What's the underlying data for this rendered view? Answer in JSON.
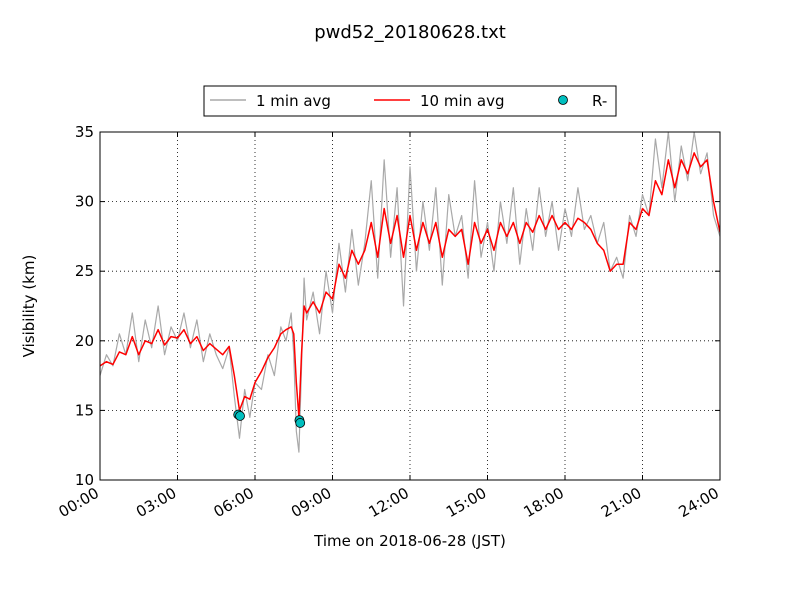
{
  "chart_data": {
    "type": "line",
    "title": "pwd52_20180628.txt",
    "xlabel": "Time on 2018-06-28 (JST)",
    "ylabel": "Visibility (km)",
    "x_unit": "hours",
    "xlim": [
      0,
      24
    ],
    "ylim": [
      10,
      35
    ],
    "x_ticks": [
      0,
      3,
      6,
      9,
      12,
      15,
      18,
      21,
      24
    ],
    "x_tick_labels": [
      "00:00",
      "03:00",
      "06:00",
      "09:00",
      "12:00",
      "15:00",
      "18:00",
      "21:00",
      "24:00"
    ],
    "y_ticks": [
      10,
      15,
      20,
      25,
      30,
      35
    ],
    "y_tick_labels": [
      "10",
      "15",
      "20",
      "25",
      "30",
      "35"
    ],
    "grid": true,
    "legend": {
      "placement": "top-center, above plot"
    },
    "series": [
      {
        "name": "1 min avg",
        "color": "#a9a9a9",
        "kind": "line",
        "x": [
          0.0,
          0.25,
          0.5,
          0.75,
          1.0,
          1.25,
          1.5,
          1.75,
          2.0,
          2.25,
          2.5,
          2.75,
          3.0,
          3.25,
          3.5,
          3.75,
          4.0,
          4.25,
          4.5,
          4.75,
          5.0,
          5.2,
          5.4,
          5.6,
          5.8,
          6.0,
          6.25,
          6.5,
          6.75,
          7.0,
          7.2,
          7.4,
          7.5,
          7.6,
          7.7,
          7.8,
          7.9,
          8.0,
          8.25,
          8.5,
          8.75,
          9.0,
          9.25,
          9.5,
          9.75,
          10.0,
          10.25,
          10.5,
          10.75,
          11.0,
          11.25,
          11.5,
          11.75,
          12.0,
          12.25,
          12.5,
          12.75,
          13.0,
          13.25,
          13.5,
          13.75,
          14.0,
          14.25,
          14.5,
          14.75,
          15.0,
          15.25,
          15.5,
          15.75,
          16.0,
          16.25,
          16.5,
          16.75,
          17.0,
          17.25,
          17.5,
          17.75,
          18.0,
          18.25,
          18.5,
          18.75,
          19.0,
          19.25,
          19.5,
          19.75,
          20.0,
          20.25,
          20.5,
          20.75,
          21.0,
          21.25,
          21.5,
          21.75,
          22.0,
          22.25,
          22.5,
          22.75,
          23.0,
          23.25,
          23.5,
          23.75,
          24.0
        ],
        "values": [
          17.5,
          19.0,
          18.2,
          20.5,
          19.0,
          22.0,
          18.5,
          21.5,
          19.5,
          22.5,
          19.0,
          21.0,
          20.0,
          22.0,
          19.5,
          21.5,
          18.5,
          20.5,
          19.0,
          18.0,
          19.5,
          16.0,
          13.0,
          16.5,
          14.5,
          17.0,
          16.5,
          19.0,
          17.5,
          21.0,
          20.0,
          22.0,
          19.0,
          13.5,
          12.0,
          18.0,
          24.5,
          21.5,
          23.5,
          20.5,
          25.0,
          22.0,
          27.0,
          23.5,
          28.0,
          24.0,
          27.0,
          31.5,
          24.5,
          33.0,
          26.0,
          31.0,
          22.5,
          32.5,
          25.0,
          30.0,
          26.5,
          31.0,
          24.0,
          30.5,
          27.5,
          29.0,
          24.5,
          31.5,
          26.0,
          28.5,
          25.0,
          30.0,
          27.0,
          31.0,
          25.5,
          29.5,
          26.5,
          31.0,
          27.5,
          30.0,
          26.5,
          29.5,
          27.5,
          31.0,
          28.0,
          29.0,
          27.0,
          28.5,
          25.0,
          26.0,
          24.5,
          29.0,
          27.5,
          30.5,
          29.0,
          34.5,
          31.0,
          35.0,
          30.0,
          34.0,
          31.5,
          35.0,
          32.0,
          33.5,
          29.0,
          27.5
        ]
      },
      {
        "name": "10 min avg",
        "color": "#ff0000",
        "kind": "line",
        "x": [
          0.0,
          0.25,
          0.5,
          0.75,
          1.0,
          1.25,
          1.5,
          1.75,
          2.0,
          2.25,
          2.5,
          2.75,
          3.0,
          3.25,
          3.5,
          3.75,
          4.0,
          4.25,
          4.5,
          4.75,
          5.0,
          5.2,
          5.4,
          5.6,
          5.8,
          6.0,
          6.25,
          6.5,
          6.75,
          7.0,
          7.2,
          7.4,
          7.5,
          7.6,
          7.7,
          7.8,
          7.9,
          8.0,
          8.25,
          8.5,
          8.75,
          9.0,
          9.25,
          9.5,
          9.75,
          10.0,
          10.25,
          10.5,
          10.75,
          11.0,
          11.25,
          11.5,
          11.75,
          12.0,
          12.25,
          12.5,
          12.75,
          13.0,
          13.25,
          13.5,
          13.75,
          14.0,
          14.25,
          14.5,
          14.75,
          15.0,
          15.25,
          15.5,
          15.75,
          16.0,
          16.25,
          16.5,
          16.75,
          17.0,
          17.25,
          17.5,
          17.75,
          18.0,
          18.25,
          18.5,
          18.75,
          19.0,
          19.25,
          19.5,
          19.75,
          20.0,
          20.25,
          20.5,
          20.75,
          21.0,
          21.25,
          21.5,
          21.75,
          22.0,
          22.25,
          22.5,
          22.75,
          23.0,
          23.25,
          23.5,
          23.75,
          24.0
        ],
        "values": [
          18.2,
          18.5,
          18.3,
          19.2,
          19.0,
          20.3,
          19.0,
          20.0,
          19.8,
          20.8,
          19.7,
          20.3,
          20.2,
          20.8,
          19.8,
          20.3,
          19.3,
          19.8,
          19.4,
          19.0,
          19.6,
          17.5,
          15.0,
          16.0,
          15.8,
          17.0,
          17.8,
          18.8,
          19.5,
          20.5,
          20.8,
          21.0,
          20.5,
          17.0,
          14.5,
          19.0,
          22.5,
          22.0,
          22.8,
          22.0,
          23.5,
          23.0,
          25.5,
          24.5,
          26.5,
          25.5,
          26.5,
          28.5,
          26.0,
          29.5,
          27.0,
          29.0,
          26.0,
          29.0,
          26.5,
          28.5,
          27.0,
          28.5,
          26.0,
          28.0,
          27.5,
          28.0,
          25.5,
          28.5,
          27.0,
          28.0,
          26.5,
          28.5,
          27.5,
          28.5,
          27.0,
          28.5,
          27.8,
          29.0,
          28.0,
          29.0,
          28.0,
          28.5,
          28.0,
          28.8,
          28.5,
          28.0,
          27.0,
          26.5,
          25.0,
          25.5,
          25.5,
          28.5,
          28.0,
          29.5,
          29.0,
          31.5,
          30.5,
          33.0,
          31.0,
          33.0,
          32.0,
          33.5,
          32.5,
          33.0,
          30.0,
          27.8
        ]
      },
      {
        "name": "R-",
        "color": "#00bfbf",
        "kind": "scatter",
        "x": [
          5.35,
          5.42,
          7.72,
          7.75
        ],
        "values": [
          14.7,
          14.6,
          14.3,
          14.1
        ]
      }
    ]
  }
}
